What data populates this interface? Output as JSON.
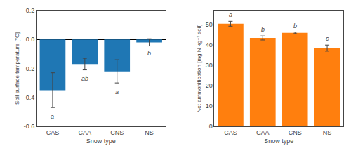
{
  "chart_data": [
    {
      "type": "bar",
      "categories": [
        "CAS",
        "CAA",
        "CNS",
        "NS"
      ],
      "values": [
        -0.35,
        -0.17,
        -0.22,
        -0.02
      ],
      "errors": [
        0.12,
        0.04,
        0.08,
        0.025
      ],
      "xlabel": "Snow type",
      "ylabel": "Soil surface temperature [°C]",
      "ylim": [
        -0.6,
        0.2
      ],
      "yticks": [
        -0.6,
        -0.4,
        -0.2,
        {
          "value": 0,
          "label": "0.0"
        },
        0.2
      ],
      "annotations": [
        {
          "x": "CAS",
          "y": -0.5,
          "text": "a"
        },
        {
          "x": "CAA",
          "y": -0.235,
          "text": "ab"
        },
        {
          "x": "CNS",
          "y": -0.33,
          "text": "a"
        },
        {
          "x": "NS",
          "y": -0.06,
          "text": "b"
        }
      ],
      "grid": false
    },
    {
      "type": "bar",
      "categories": [
        "CAS",
        "CAA",
        "CNS",
        "NS"
      ],
      "values": [
        50.5,
        43.5,
        46.0,
        38.5
      ],
      "errors": [
        1.2,
        1.0,
        0.4,
        1.5
      ],
      "xlabel": "Snow type",
      "ylabel": "Net ammonification [mg N kg⁻¹ soil]",
      "ylim": [
        0,
        57
      ],
      "yticks": [
        0,
        10,
        20,
        30,
        40,
        50
      ],
      "annotations": [
        {
          "x": "CAS",
          "y": 52.5,
          "text": "a"
        },
        {
          "x": "CAA",
          "y": 45.2,
          "text": "b"
        },
        {
          "x": "CNS",
          "y": 47.1,
          "text": "b"
        },
        {
          "x": "NS",
          "y": 40.8,
          "text": "c"
        }
      ],
      "grid": false
    }
  ]
}
